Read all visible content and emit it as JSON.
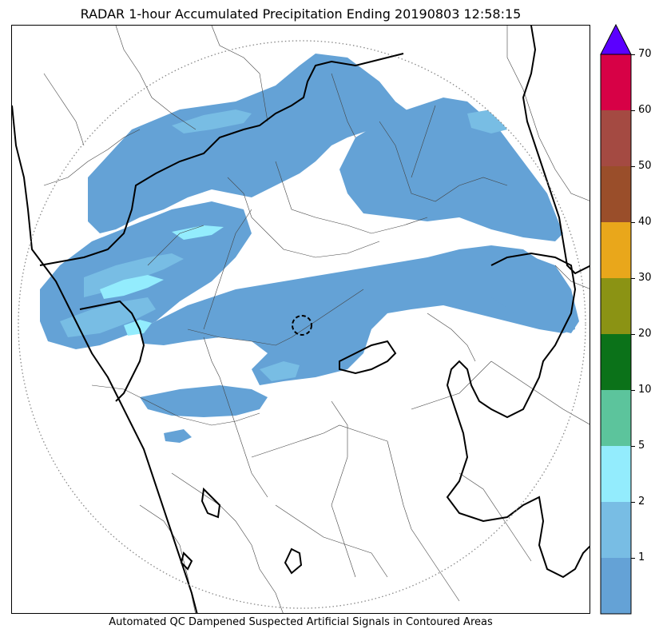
{
  "title": "RADAR 1-hour Accumulated Precipitation Ending 20190803 12:58:15",
  "caption": "Automated QC Dampened Suspected Artificial Signals in Contoured Areas",
  "colorbar": {
    "ticks": [
      "1",
      "2",
      "5",
      "10",
      "20",
      "30",
      "40",
      "50",
      "60",
      "70"
    ],
    "bands": [
      {
        "color": "#64a2d6",
        "from": 0,
        "to": 1
      },
      {
        "color": "#78bde4",
        "from": 1,
        "to": 2
      },
      {
        "color": "#93ecfd",
        "from": 2,
        "to": 5
      },
      {
        "color": "#5cc49c",
        "from": 5,
        "to": 10
      },
      {
        "color": "#0b7219",
        "from": 10,
        "to": 20
      },
      {
        "color": "#8b9314",
        "from": 20,
        "to": 30
      },
      {
        "color": "#e9a71b",
        "from": 30,
        "to": 40
      },
      {
        "color": "#9a4e2a",
        "from": 40,
        "to": 50
      },
      {
        "color": "#a44a42",
        "from": 50,
        "to": 60
      },
      {
        "color": "#d70146",
        "from": 60,
        "to": 70
      }
    ],
    "extend_color": "#5b00ff"
  },
  "map": {
    "range_ring": "dotted-grey",
    "boundaries": [
      "state",
      "district"
    ]
  }
}
